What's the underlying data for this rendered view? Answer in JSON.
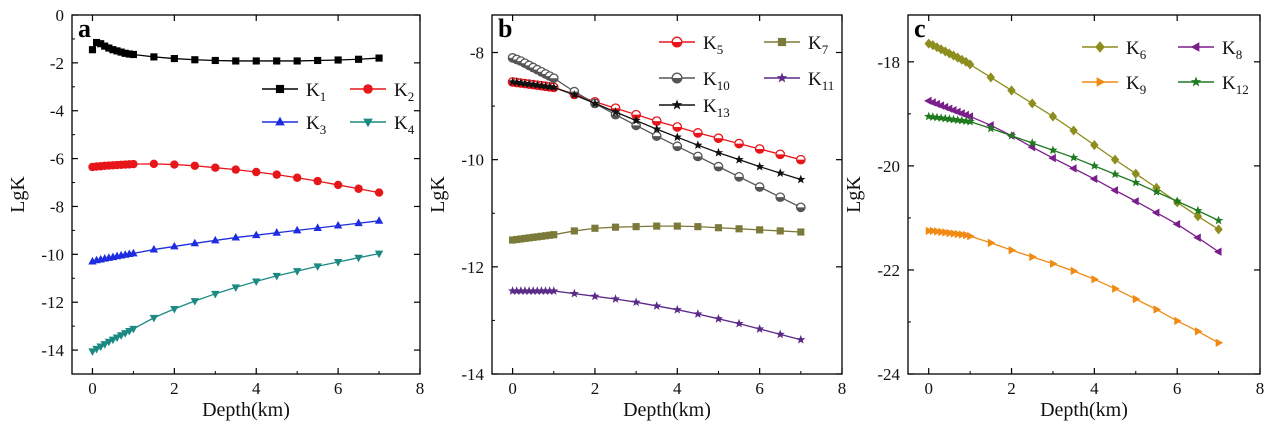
{
  "chart_data": [
    {
      "type": "line",
      "panel_label": "a",
      "xlabel": "Depth(km)",
      "ylabel": "LgK",
      "xlim": [
        -0.5,
        8
      ],
      "ylim": [
        -15,
        0
      ],
      "xticks": [
        0,
        2,
        4,
        6,
        8
      ],
      "yticks": [
        -14,
        -12,
        -10,
        -8,
        -6,
        -4,
        -2,
        0
      ],
      "grid": false,
      "legend_position": "right, upper-middle",
      "x": [
        0,
        0.1,
        0.2,
        0.3,
        0.4,
        0.5,
        0.6,
        0.7,
        0.8,
        0.9,
        1.0,
        1.5,
        2.0,
        2.5,
        3.0,
        3.5,
        4.0,
        4.5,
        5.0,
        5.5,
        6.0,
        6.5,
        7.0
      ],
      "series": [
        {
          "name": "K",
          "sub": "1",
          "color": "#000000",
          "marker": "square",
          "values": [
            -1.45,
            -1.15,
            -1.2,
            -1.3,
            -1.38,
            -1.45,
            -1.5,
            -1.55,
            -1.6,
            -1.63,
            -1.65,
            -1.75,
            -1.82,
            -1.87,
            -1.9,
            -1.92,
            -1.92,
            -1.92,
            -1.92,
            -1.9,
            -1.88,
            -1.85,
            -1.8
          ]
        },
        {
          "name": "K",
          "sub": "2",
          "color": "#e8151b",
          "marker": "circle",
          "values": [
            -6.35,
            -6.33,
            -6.32,
            -6.3,
            -6.29,
            -6.28,
            -6.27,
            -6.26,
            -6.25,
            -6.24,
            -6.23,
            -6.22,
            -6.25,
            -6.3,
            -6.38,
            -6.46,
            -6.56,
            -6.67,
            -6.8,
            -6.94,
            -7.1,
            -7.26,
            -7.42
          ]
        },
        {
          "name": "K",
          "sub": "3",
          "color": "#1f2de0",
          "marker": "triangle-up",
          "values": [
            -10.3,
            -10.25,
            -10.22,
            -10.18,
            -10.15,
            -10.12,
            -10.08,
            -10.05,
            -10.02,
            -9.99,
            -9.96,
            -9.8,
            -9.67,
            -9.54,
            -9.42,
            -9.3,
            -9.2,
            -9.1,
            -9.0,
            -8.9,
            -8.8,
            -8.7,
            -8.6
          ]
        },
        {
          "name": "K",
          "sub": "4",
          "color": "#1a8a83",
          "marker": "triangle-down",
          "values": [
            -14.05,
            -13.95,
            -13.85,
            -13.75,
            -13.65,
            -13.56,
            -13.47,
            -13.38,
            -13.29,
            -13.2,
            -13.11,
            -12.65,
            -12.28,
            -11.95,
            -11.65,
            -11.38,
            -11.13,
            -10.9,
            -10.7,
            -10.5,
            -10.32,
            -10.14,
            -9.97
          ]
        }
      ]
    },
    {
      "type": "line",
      "panel_label": "b",
      "xlabel": "Depth(km)",
      "ylabel": "LgK",
      "xlim": [
        -0.5,
        8
      ],
      "ylim": [
        -14,
        -7.3
      ],
      "xticks": [
        0,
        2,
        4,
        6,
        8
      ],
      "yticks": [
        -14,
        -12,
        -10,
        -8
      ],
      "grid": false,
      "legend_position": "top, two columns",
      "x": [
        0,
        0.1,
        0.2,
        0.3,
        0.4,
        0.5,
        0.6,
        0.7,
        0.8,
        0.9,
        1.0,
        1.5,
        2.0,
        2.5,
        3.0,
        3.5,
        4.0,
        4.5,
        5.0,
        5.5,
        6.0,
        6.5,
        7.0
      ],
      "series": [
        {
          "name": "K",
          "sub": "5",
          "color": "#e8151b",
          "marker": "half-circle",
          "values": [
            -8.55,
            -8.56,
            -8.57,
            -8.58,
            -8.59,
            -8.6,
            -8.61,
            -8.62,
            -8.63,
            -8.64,
            -8.65,
            -8.78,
            -8.92,
            -9.04,
            -9.16,
            -9.28,
            -9.39,
            -9.5,
            -9.6,
            -9.7,
            -9.8,
            -9.9,
            -10.0
          ]
        },
        {
          "name": "K",
          "sub": "7",
          "color": "#7c7a3a",
          "marker": "square",
          "values": [
            -11.5,
            -11.49,
            -11.48,
            -11.47,
            -11.46,
            -11.45,
            -11.44,
            -11.43,
            -11.42,
            -11.41,
            -11.4,
            -11.33,
            -11.28,
            -11.26,
            -11.25,
            -11.24,
            -11.24,
            -11.25,
            -11.27,
            -11.29,
            -11.31,
            -11.33,
            -11.35
          ]
        },
        {
          "name": "K",
          "sub": "10",
          "color": "#555555",
          "marker": "half-circle",
          "values": [
            -8.1,
            -8.13,
            -8.16,
            -8.2,
            -8.24,
            -8.28,
            -8.32,
            -8.36,
            -8.4,
            -8.44,
            -8.48,
            -8.73,
            -8.95,
            -9.16,
            -9.36,
            -9.56,
            -9.75,
            -9.94,
            -10.13,
            -10.32,
            -10.51,
            -10.7,
            -10.89
          ]
        },
        {
          "name": "K",
          "sub": "11",
          "color": "#5b2a86",
          "marker": "star",
          "values": [
            -12.45,
            -12.45,
            -12.45,
            -12.45,
            -12.45,
            -12.45,
            -12.45,
            -12.45,
            -12.45,
            -12.45,
            -12.45,
            -12.5,
            -12.55,
            -12.6,
            -12.66,
            -12.73,
            -12.8,
            -12.88,
            -12.97,
            -13.06,
            -13.16,
            -13.26,
            -13.36
          ]
        },
        {
          "name": "K",
          "sub": "13",
          "color": "#111111",
          "marker": "star",
          "values": [
            -8.55,
            -8.56,
            -8.57,
            -8.58,
            -8.59,
            -8.6,
            -8.61,
            -8.62,
            -8.63,
            -8.64,
            -8.65,
            -8.79,
            -8.95,
            -9.11,
            -9.27,
            -9.43,
            -9.58,
            -9.73,
            -9.87,
            -10.0,
            -10.13,
            -10.25,
            -10.37
          ]
        }
      ]
    },
    {
      "type": "line",
      "panel_label": "c",
      "xlabel": "Depth(km)",
      "ylabel": "LgK",
      "xlim": [
        -0.5,
        8
      ],
      "ylim": [
        -24,
        -17.1
      ],
      "xticks": [
        0,
        2,
        4,
        6,
        8
      ],
      "yticks": [
        -24,
        -22,
        -20,
        -18
      ],
      "grid": false,
      "legend_position": "top, two columns",
      "x": [
        0,
        0.1,
        0.2,
        0.3,
        0.4,
        0.5,
        0.6,
        0.7,
        0.8,
        0.9,
        1.0,
        1.5,
        2.0,
        2.5,
        3.0,
        3.5,
        4.0,
        4.5,
        5.0,
        5.5,
        6.0,
        6.5,
        7.0
      ],
      "series": [
        {
          "name": "K",
          "sub": "6",
          "color": "#8e8e1f",
          "marker": "diamond",
          "values": [
            -17.65,
            -17.68,
            -17.72,
            -17.76,
            -17.8,
            -17.84,
            -17.88,
            -17.92,
            -17.96,
            -18.0,
            -18.05,
            -18.3,
            -18.55,
            -18.8,
            -19.05,
            -19.32,
            -19.6,
            -19.88,
            -20.15,
            -20.42,
            -20.7,
            -20.97,
            -21.22
          ]
        },
        {
          "name": "K",
          "sub": "8",
          "color": "#7a1f8a",
          "marker": "triangle-left",
          "values": [
            -18.75,
            -18.78,
            -18.81,
            -18.84,
            -18.87,
            -18.9,
            -18.93,
            -18.96,
            -18.99,
            -19.02,
            -19.05,
            -19.22,
            -19.42,
            -19.64,
            -19.85,
            -20.05,
            -20.25,
            -20.47,
            -20.68,
            -20.9,
            -21.12,
            -21.38,
            -21.65
          ]
        },
        {
          "name": "K",
          "sub": "9",
          "color": "#f08a12",
          "marker": "triangle-right",
          "values": [
            -21.25,
            -21.25,
            -21.26,
            -21.27,
            -21.28,
            -21.29,
            -21.3,
            -21.31,
            -21.32,
            -21.33,
            -21.35,
            -21.48,
            -21.62,
            -21.75,
            -21.88,
            -22.02,
            -22.18,
            -22.36,
            -22.56,
            -22.76,
            -22.98,
            -23.18,
            -23.4
          ]
        },
        {
          "name": "K",
          "sub": "12",
          "color": "#1e7a1e",
          "marker": "star",
          "values": [
            -19.05,
            -19.06,
            -19.07,
            -19.08,
            -19.09,
            -19.1,
            -19.11,
            -19.12,
            -19.13,
            -19.14,
            -19.15,
            -19.28,
            -19.42,
            -19.56,
            -19.7,
            -19.84,
            -20.0,
            -20.16,
            -20.32,
            -20.5,
            -20.68,
            -20.86,
            -21.05
          ]
        }
      ]
    }
  ]
}
